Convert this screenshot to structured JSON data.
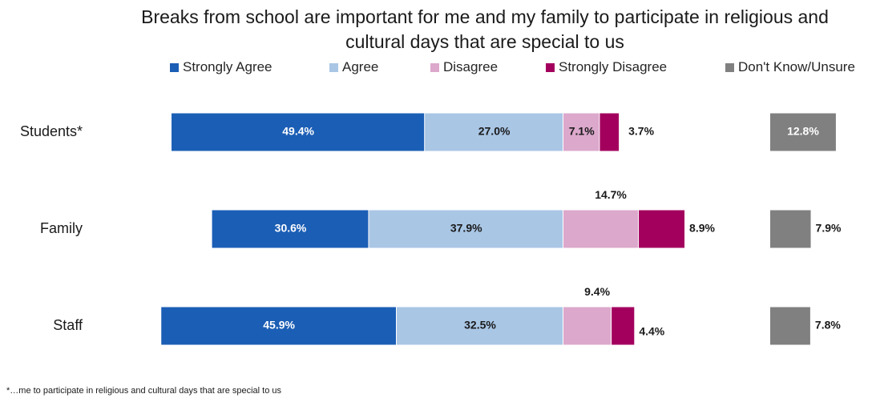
{
  "chart_data": {
    "type": "bar",
    "orientation": "horizontal",
    "stacked": true,
    "title": "Breaks from school are important for me and my family to participate in religious and cultural days that are special to us",
    "title_lines": [
      "Breaks from school are important for me and my family to participate in religious and",
      "cultural days that are special to us"
    ],
    "categories": [
      "Students*",
      "Family",
      "Staff"
    ],
    "series": [
      {
        "name": "Strongly Agree",
        "color": "#1b5eb5",
        "values": [
          49.4,
          30.6,
          45.9
        ],
        "labels": [
          "49.4%",
          "30.6%",
          "45.9%"
        ]
      },
      {
        "name": "Agree",
        "color": "#a9c6e5",
        "values": [
          27.0,
          37.9,
          32.5
        ],
        "labels": [
          "27.0%",
          "37.9%",
          "32.5%"
        ]
      },
      {
        "name": "Disagree",
        "color": "#dca8cc",
        "values": [
          7.1,
          14.7,
          9.4
        ],
        "labels": [
          "7.1%",
          "14.7%",
          "9.4%"
        ]
      },
      {
        "name": "Strongly Disagree",
        "color": "#a3005e",
        "values": [
          3.7,
          8.9,
          4.4
        ],
        "labels": [
          "3.7%",
          "8.9%",
          "4.4%"
        ]
      },
      {
        "name": "Don't Know/Unsure",
        "color": "#808080",
        "values": [
          12.8,
          7.9,
          7.8
        ],
        "labels": [
          "12.8%",
          "7.9%",
          "7.8%"
        ]
      }
    ],
    "legend_position": "top",
    "grid": false
  },
  "footnote": "*…me to participate in religious and cultural days that are special to us"
}
